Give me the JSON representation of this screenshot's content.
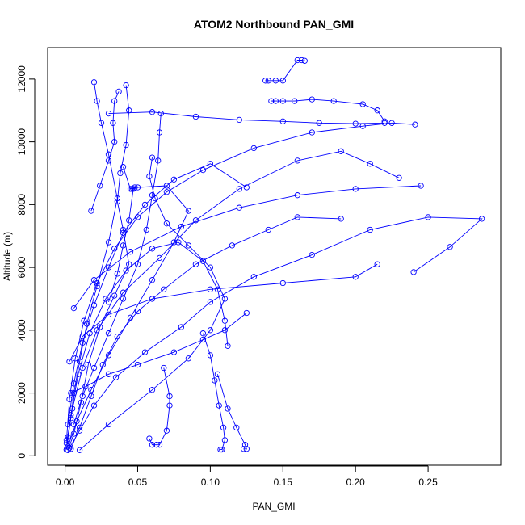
{
  "chart_data": {
    "type": "scatter",
    "title": "ATOM2 Northbound PAN_GMI",
    "xlabel": "PAN_GMI",
    "ylabel": "Altitude (m)",
    "xlim": [
      -0.012,
      0.3
    ],
    "ylim": [
      -300,
      13000
    ],
    "xticks": [
      0.0,
      0.05,
      0.1,
      0.15,
      0.2,
      0.25
    ],
    "xtick_labels": [
      "0.00",
      "0.05",
      "0.10",
      "0.15",
      "0.20",
      "0.25"
    ],
    "yticks": [
      0,
      2000,
      4000,
      6000,
      8000,
      10000,
      12000
    ],
    "ytick_labels": [
      "0",
      "2000",
      "4000",
      "6000",
      "8000",
      "10000",
      "12000"
    ],
    "marker": "open-circle",
    "connected": true,
    "grid": false,
    "legend": "none",
    "color": "#0000ff",
    "series": [
      {
        "values": [
          {
            "x": 0.001,
            "y": 200
          },
          {
            "x": 0.002,
            "y": 600
          },
          {
            "x": 0.004,
            "y": 1200
          },
          {
            "x": 0.006,
            "y": 2000
          },
          {
            "x": 0.01,
            "y": 3000
          },
          {
            "x": 0.015,
            "y": 4200
          },
          {
            "x": 0.022,
            "y": 5400
          },
          {
            "x": 0.03,
            "y": 6800
          },
          {
            "x": 0.036,
            "y": 8200
          },
          {
            "x": 0.03,
            "y": 9600
          },
          {
            "x": 0.025,
            "y": 10600
          },
          {
            "x": 0.022,
            "y": 11300
          },
          {
            "x": 0.02,
            "y": 11900
          }
        ]
      },
      {
        "values": [
          {
            "x": 0.003,
            "y": 250
          },
          {
            "x": 0.01,
            "y": 800
          },
          {
            "x": 0.02,
            "y": 1600
          },
          {
            "x": 0.035,
            "y": 2500
          },
          {
            "x": 0.055,
            "y": 3300
          },
          {
            "x": 0.08,
            "y": 4100
          },
          {
            "x": 0.1,
            "y": 4900
          },
          {
            "x": 0.13,
            "y": 5700
          },
          {
            "x": 0.17,
            "y": 6400
          },
          {
            "x": 0.21,
            "y": 7200
          },
          {
            "x": 0.25,
            "y": 7600
          },
          {
            "x": 0.287,
            "y": 7550
          },
          {
            "x": 0.265,
            "y": 6650
          },
          {
            "x": 0.24,
            "y": 5850
          }
        ]
      },
      {
        "values": [
          {
            "x": 0.002,
            "y": 300
          },
          {
            "x": 0.008,
            "y": 1100
          },
          {
            "x": 0.018,
            "y": 2100
          },
          {
            "x": 0.03,
            "y": 3200
          },
          {
            "x": 0.045,
            "y": 4400
          },
          {
            "x": 0.06,
            "y": 5600
          },
          {
            "x": 0.075,
            "y": 6800
          },
          {
            "x": 0.085,
            "y": 7800
          },
          {
            "x": 0.07,
            "y": 8600
          },
          {
            "x": 0.05,
            "y": 8550
          },
          {
            "x": 0.046,
            "y": 8500
          }
        ]
      },
      {
        "values": [
          {
            "x": 0.001,
            "y": 400
          },
          {
            "x": 0.005,
            "y": 1500
          },
          {
            "x": 0.012,
            "y": 2800
          },
          {
            "x": 0.022,
            "y": 4000
          },
          {
            "x": 0.04,
            "y": 5200
          },
          {
            "x": 0.065,
            "y": 6300
          },
          {
            "x": 0.09,
            "y": 7500
          },
          {
            "x": 0.12,
            "y": 8500
          },
          {
            "x": 0.16,
            "y": 9400
          },
          {
            "x": 0.19,
            "y": 9700
          },
          {
            "x": 0.21,
            "y": 9300
          },
          {
            "x": 0.23,
            "y": 8850
          }
        ]
      },
      {
        "values": [
          {
            "x": 0.002,
            "y": 180
          },
          {
            "x": 0.006,
            "y": 700
          },
          {
            "x": 0.011,
            "y": 1700
          },
          {
            "x": 0.016,
            "y": 2900
          },
          {
            "x": 0.024,
            "y": 4100
          },
          {
            "x": 0.034,
            "y": 5100
          },
          {
            "x": 0.044,
            "y": 6100
          },
          {
            "x": 0.04,
            "y": 7200
          },
          {
            "x": 0.036,
            "y": 8100
          },
          {
            "x": 0.038,
            "y": 9000
          },
          {
            "x": 0.042,
            "y": 9900
          },
          {
            "x": 0.044,
            "y": 11000
          },
          {
            "x": 0.042,
            "y": 11800
          }
        ]
      },
      {
        "values": [
          {
            "x": 0.01,
            "y": 180
          },
          {
            "x": 0.03,
            "y": 1000
          },
          {
            "x": 0.06,
            "y": 2100
          },
          {
            "x": 0.085,
            "y": 3100
          },
          {
            "x": 0.1,
            "y": 4000
          },
          {
            "x": 0.11,
            "y": 5000
          },
          {
            "x": 0.1,
            "y": 6000
          },
          {
            "x": 0.085,
            "y": 6700
          },
          {
            "x": 0.07,
            "y": 7400
          },
          {
            "x": 0.062,
            "y": 8200
          },
          {
            "x": 0.058,
            "y": 8900
          },
          {
            "x": 0.06,
            "y": 9500
          }
        ]
      },
      {
        "values": [
          {
            "x": 0.001,
            "y": 500
          },
          {
            "x": 0.003,
            "y": 1800
          },
          {
            "x": 0.007,
            "y": 3100
          },
          {
            "x": 0.013,
            "y": 4300
          },
          {
            "x": 0.022,
            "y": 5500
          },
          {
            "x": 0.034,
            "y": 6600
          },
          {
            "x": 0.05,
            "y": 7600
          },
          {
            "x": 0.07,
            "y": 8400
          },
          {
            "x": 0.095,
            "y": 9100
          },
          {
            "x": 0.13,
            "y": 9800
          },
          {
            "x": 0.17,
            "y": 10300
          },
          {
            "x": 0.205,
            "y": 10500
          },
          {
            "x": 0.225,
            "y": 10600
          },
          {
            "x": 0.241,
            "y": 10550
          }
        ]
      },
      {
        "values": [
          {
            "x": 0.03,
            "y": 10900
          },
          {
            "x": 0.06,
            "y": 10950
          },
          {
            "x": 0.09,
            "y": 10800
          },
          {
            "x": 0.12,
            "y": 10700
          },
          {
            "x": 0.15,
            "y": 10650
          },
          {
            "x": 0.175,
            "y": 10600
          },
          {
            "x": 0.2,
            "y": 10580
          },
          {
            "x": 0.22,
            "y": 10600
          }
        ]
      },
      {
        "values": [
          {
            "x": 0.138,
            "y": 11950
          },
          {
            "x": 0.14,
            "y": 11950
          },
          {
            "x": 0.145,
            "y": 11950
          },
          {
            "x": 0.15,
            "y": 11950
          },
          {
            "x": 0.16,
            "y": 12600
          },
          {
            "x": 0.163,
            "y": 12600
          },
          {
            "x": 0.165,
            "y": 12580
          }
        ]
      },
      {
        "values": [
          {
            "x": 0.142,
            "y": 11300
          },
          {
            "x": 0.145,
            "y": 11300
          },
          {
            "x": 0.15,
            "y": 11300
          },
          {
            "x": 0.158,
            "y": 11300
          },
          {
            "x": 0.17,
            "y": 11350
          },
          {
            "x": 0.185,
            "y": 11300
          },
          {
            "x": 0.205,
            "y": 11200
          },
          {
            "x": 0.215,
            "y": 11000
          },
          {
            "x": 0.22,
            "y": 10650
          }
        ]
      },
      {
        "values": [
          {
            "x": 0.004,
            "y": 220
          },
          {
            "x": 0.01,
            "y": 900
          },
          {
            "x": 0.018,
            "y": 1900
          },
          {
            "x": 0.026,
            "y": 2900
          },
          {
            "x": 0.036,
            "y": 3800
          },
          {
            "x": 0.05,
            "y": 4600
          },
          {
            "x": 0.068,
            "y": 5300
          },
          {
            "x": 0.09,
            "y": 6100
          },
          {
            "x": 0.115,
            "y": 6700
          },
          {
            "x": 0.14,
            "y": 7200
          },
          {
            "x": 0.16,
            "y": 7600
          },
          {
            "x": 0.19,
            "y": 7550
          }
        ]
      },
      {
        "values": [
          {
            "x": 0.001,
            "y": 200
          },
          {
            "x": 0.004,
            "y": 1300
          },
          {
            "x": 0.009,
            "y": 2600
          },
          {
            "x": 0.017,
            "y": 3900
          },
          {
            "x": 0.028,
            "y": 5000
          },
          {
            "x": 0.042,
            "y": 5900
          },
          {
            "x": 0.06,
            "y": 6600
          },
          {
            "x": 0.078,
            "y": 6800
          },
          {
            "x": 0.095,
            "y": 6200
          },
          {
            "x": 0.105,
            "y": 5300
          },
          {
            "x": 0.11,
            "y": 4300
          },
          {
            "x": 0.112,
            "y": 3500
          }
        ]
      },
      {
        "values": [
          {
            "x": 0.058,
            "y": 550
          },
          {
            "x": 0.06,
            "y": 350
          },
          {
            "x": 0.063,
            "y": 350
          },
          {
            "x": 0.065,
            "y": 350
          },
          {
            "x": 0.07,
            "y": 800
          },
          {
            "x": 0.072,
            "y": 1600
          },
          {
            "x": 0.072,
            "y": 1900
          },
          {
            "x": 0.068,
            "y": 2800
          }
        ]
      },
      {
        "values": [
          {
            "x": 0.107,
            "y": 200
          },
          {
            "x": 0.108,
            "y": 200
          },
          {
            "x": 0.11,
            "y": 500
          },
          {
            "x": 0.109,
            "y": 900
          },
          {
            "x": 0.106,
            "y": 1600
          },
          {
            "x": 0.103,
            "y": 2400
          },
          {
            "x": 0.1,
            "y": 3200
          },
          {
            "x": 0.095,
            "y": 3900
          }
        ]
      },
      {
        "values": [
          {
            "x": 0.123,
            "y": 220
          },
          {
            "x": 0.125,
            "y": 220
          },
          {
            "x": 0.124,
            "y": 350
          },
          {
            "x": 0.118,
            "y": 900
          },
          {
            "x": 0.112,
            "y": 1500
          },
          {
            "x": 0.105,
            "y": 2600
          }
        ]
      },
      {
        "values": [
          {
            "x": 0.002,
            "y": 1000
          },
          {
            "x": 0.006,
            "y": 2300
          },
          {
            "x": 0.012,
            "y": 3600
          },
          {
            "x": 0.02,
            "y": 4800
          },
          {
            "x": 0.03,
            "y": 6000
          },
          {
            "x": 0.04,
            "y": 7100
          },
          {
            "x": 0.055,
            "y": 8000
          },
          {
            "x": 0.075,
            "y": 8800
          },
          {
            "x": 0.1,
            "y": 9300
          },
          {
            "x": 0.125,
            "y": 8550
          }
        ]
      },
      {
        "values": [
          {
            "x": 0.003,
            "y": 3000
          },
          {
            "x": 0.012,
            "y": 3800
          },
          {
            "x": 0.03,
            "y": 4500
          },
          {
            "x": 0.06,
            "y": 5000
          },
          {
            "x": 0.1,
            "y": 5300
          },
          {
            "x": 0.15,
            "y": 5500
          },
          {
            "x": 0.2,
            "y": 5700
          },
          {
            "x": 0.215,
            "y": 6100
          }
        ]
      },
      {
        "values": [
          {
            "x": 0.006,
            "y": 4700
          },
          {
            "x": 0.02,
            "y": 5600
          },
          {
            "x": 0.045,
            "y": 6500
          },
          {
            "x": 0.08,
            "y": 7300
          },
          {
            "x": 0.12,
            "y": 7900
          },
          {
            "x": 0.16,
            "y": 8300
          },
          {
            "x": 0.2,
            "y": 8500
          },
          {
            "x": 0.245,
            "y": 8600
          }
        ]
      },
      {
        "values": [
          {
            "x": 0.018,
            "y": 7800
          },
          {
            "x": 0.024,
            "y": 8600
          },
          {
            "x": 0.03,
            "y": 9400
          },
          {
            "x": 0.034,
            "y": 10000
          },
          {
            "x": 0.033,
            "y": 10600
          },
          {
            "x": 0.034,
            "y": 11300
          },
          {
            "x": 0.037,
            "y": 11600
          }
        ]
      },
      {
        "values": [
          {
            "x": 0.04,
            "y": 9200
          },
          {
            "x": 0.045,
            "y": 8500
          },
          {
            "x": 0.048,
            "y": 8550
          },
          {
            "x": 0.047,
            "y": 8500
          },
          {
            "x": 0.044,
            "y": 7500
          },
          {
            "x": 0.04,
            "y": 6700
          },
          {
            "x": 0.036,
            "y": 5800
          },
          {
            "x": 0.03,
            "y": 4900
          }
        ]
      },
      {
        "values": [
          {
            "x": 0.004,
            "y": 2000
          },
          {
            "x": 0.014,
            "y": 2200
          },
          {
            "x": 0.03,
            "y": 2600
          },
          {
            "x": 0.05,
            "y": 2900
          },
          {
            "x": 0.075,
            "y": 3300
          },
          {
            "x": 0.095,
            "y": 3700
          },
          {
            "x": 0.11,
            "y": 4000
          },
          {
            "x": 0.125,
            "y": 4550
          }
        ]
      },
      {
        "values": [
          {
            "x": 0.066,
            "y": 10900
          },
          {
            "x": 0.065,
            "y": 10300
          },
          {
            "x": 0.064,
            "y": 9400
          },
          {
            "x": 0.06,
            "y": 8300
          },
          {
            "x": 0.056,
            "y": 7200
          },
          {
            "x": 0.05,
            "y": 6100
          },
          {
            "x": 0.04,
            "y": 5000
          },
          {
            "x": 0.03,
            "y": 3900
          },
          {
            "x": 0.02,
            "y": 2800
          },
          {
            "x": 0.012,
            "y": 1900
          },
          {
            "x": 0.006,
            "y": 1000
          }
        ]
      }
    ]
  }
}
